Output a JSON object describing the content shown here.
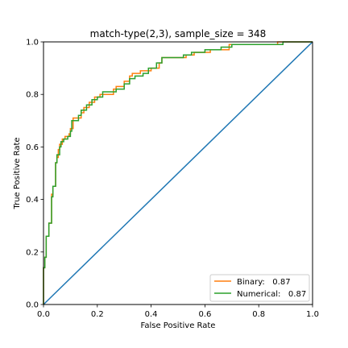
{
  "chart_data": {
    "type": "line",
    "title": "match-type(2,3), sample_size =  348",
    "xlabel": "False Positive Rate",
    "ylabel": "True Positive Rate",
    "xlim": [
      0,
      1
    ],
    "ylim": [
      0,
      1
    ],
    "xticks": [
      "0.0",
      "0.2",
      "0.4",
      "0.6",
      "0.8",
      "1.0"
    ],
    "yticks": [
      "0.0",
      "0.2",
      "0.4",
      "0.6",
      "0.8",
      "1.0"
    ],
    "grid": false,
    "legend_position": "lower-right",
    "reference_line": {
      "color": "#1f77b4",
      "points": [
        [
          0,
          0
        ],
        [
          1,
          1
        ]
      ]
    },
    "series": [
      {
        "name": "Binary:   0.87",
        "color": "#ff7f0e",
        "points": [
          [
            0,
            0
          ],
          [
            0,
            0.14
          ],
          [
            0.005,
            0.14
          ],
          [
            0.005,
            0.18
          ],
          [
            0.01,
            0.18
          ],
          [
            0.01,
            0.26
          ],
          [
            0.02,
            0.26
          ],
          [
            0.02,
            0.31
          ],
          [
            0.03,
            0.31
          ],
          [
            0.03,
            0.42
          ],
          [
            0.035,
            0.42
          ],
          [
            0.035,
            0.45
          ],
          [
            0.045,
            0.45
          ],
          [
            0.045,
            0.54
          ],
          [
            0.05,
            0.54
          ],
          [
            0.05,
            0.56
          ],
          [
            0.055,
            0.56
          ],
          [
            0.055,
            0.59
          ],
          [
            0.06,
            0.59
          ],
          [
            0.06,
            0.61
          ],
          [
            0.07,
            0.61
          ],
          [
            0.07,
            0.63
          ],
          [
            0.08,
            0.63
          ],
          [
            0.08,
            0.64
          ],
          [
            0.095,
            0.64
          ],
          [
            0.095,
            0.65
          ],
          [
            0.1,
            0.65
          ],
          [
            0.1,
            0.67
          ],
          [
            0.11,
            0.67
          ],
          [
            0.11,
            0.71
          ],
          [
            0.14,
            0.71
          ],
          [
            0.14,
            0.73
          ],
          [
            0.15,
            0.73
          ],
          [
            0.15,
            0.75
          ],
          [
            0.17,
            0.75
          ],
          [
            0.17,
            0.77
          ],
          [
            0.19,
            0.77
          ],
          [
            0.19,
            0.79
          ],
          [
            0.21,
            0.79
          ],
          [
            0.21,
            0.8
          ],
          [
            0.26,
            0.8
          ],
          [
            0.26,
            0.82
          ],
          [
            0.27,
            0.82
          ],
          [
            0.27,
            0.83
          ],
          [
            0.3,
            0.83
          ],
          [
            0.3,
            0.85
          ],
          [
            0.32,
            0.85
          ],
          [
            0.32,
            0.87
          ],
          [
            0.33,
            0.87
          ],
          [
            0.33,
            0.88
          ],
          [
            0.36,
            0.88
          ],
          [
            0.36,
            0.89
          ],
          [
            0.4,
            0.89
          ],
          [
            0.4,
            0.9
          ],
          [
            0.43,
            0.9
          ],
          [
            0.43,
            0.92
          ],
          [
            0.44,
            0.92
          ],
          [
            0.44,
            0.94
          ],
          [
            0.53,
            0.94
          ],
          [
            0.53,
            0.95
          ],
          [
            0.56,
            0.95
          ],
          [
            0.56,
            0.96
          ],
          [
            0.62,
            0.96
          ],
          [
            0.62,
            0.97
          ],
          [
            0.69,
            0.97
          ],
          [
            0.69,
            0.99
          ],
          [
            0.87,
            0.99
          ],
          [
            0.87,
            1.0
          ],
          [
            1.0,
            1.0
          ]
        ]
      },
      {
        "name": "Numerical:   0.87",
        "color": "#2ca02c",
        "points": [
          [
            0,
            0
          ],
          [
            0,
            0.14
          ],
          [
            0.005,
            0.14
          ],
          [
            0.005,
            0.18
          ],
          [
            0.01,
            0.18
          ],
          [
            0.01,
            0.26
          ],
          [
            0.02,
            0.26
          ],
          [
            0.02,
            0.31
          ],
          [
            0.03,
            0.31
          ],
          [
            0.03,
            0.41
          ],
          [
            0.035,
            0.41
          ],
          [
            0.035,
            0.45
          ],
          [
            0.045,
            0.45
          ],
          [
            0.045,
            0.54
          ],
          [
            0.05,
            0.54
          ],
          [
            0.05,
            0.57
          ],
          [
            0.06,
            0.57
          ],
          [
            0.06,
            0.6
          ],
          [
            0.065,
            0.6
          ],
          [
            0.065,
            0.62
          ],
          [
            0.075,
            0.62
          ],
          [
            0.075,
            0.63
          ],
          [
            0.09,
            0.63
          ],
          [
            0.09,
            0.64
          ],
          [
            0.1,
            0.64
          ],
          [
            0.1,
            0.66
          ],
          [
            0.105,
            0.66
          ],
          [
            0.105,
            0.7
          ],
          [
            0.13,
            0.7
          ],
          [
            0.13,
            0.72
          ],
          [
            0.14,
            0.72
          ],
          [
            0.14,
            0.74
          ],
          [
            0.16,
            0.74
          ],
          [
            0.16,
            0.76
          ],
          [
            0.18,
            0.76
          ],
          [
            0.18,
            0.78
          ],
          [
            0.2,
            0.78
          ],
          [
            0.2,
            0.79
          ],
          [
            0.22,
            0.79
          ],
          [
            0.22,
            0.81
          ],
          [
            0.27,
            0.81
          ],
          [
            0.27,
            0.82
          ],
          [
            0.3,
            0.82
          ],
          [
            0.3,
            0.84
          ],
          [
            0.32,
            0.84
          ],
          [
            0.32,
            0.86
          ],
          [
            0.34,
            0.86
          ],
          [
            0.34,
            0.87
          ],
          [
            0.37,
            0.87
          ],
          [
            0.37,
            0.88
          ],
          [
            0.39,
            0.88
          ],
          [
            0.39,
            0.9
          ],
          [
            0.42,
            0.9
          ],
          [
            0.42,
            0.92
          ],
          [
            0.44,
            0.92
          ],
          [
            0.44,
            0.94
          ],
          [
            0.52,
            0.94
          ],
          [
            0.52,
            0.95
          ],
          [
            0.55,
            0.95
          ],
          [
            0.55,
            0.96
          ],
          [
            0.6,
            0.96
          ],
          [
            0.6,
            0.97
          ],
          [
            0.66,
            0.97
          ],
          [
            0.66,
            0.98
          ],
          [
            0.7,
            0.98
          ],
          [
            0.7,
            0.99
          ],
          [
            0.89,
            0.99
          ],
          [
            0.89,
            1.0
          ],
          [
            1.0,
            1.0
          ]
        ]
      }
    ]
  }
}
